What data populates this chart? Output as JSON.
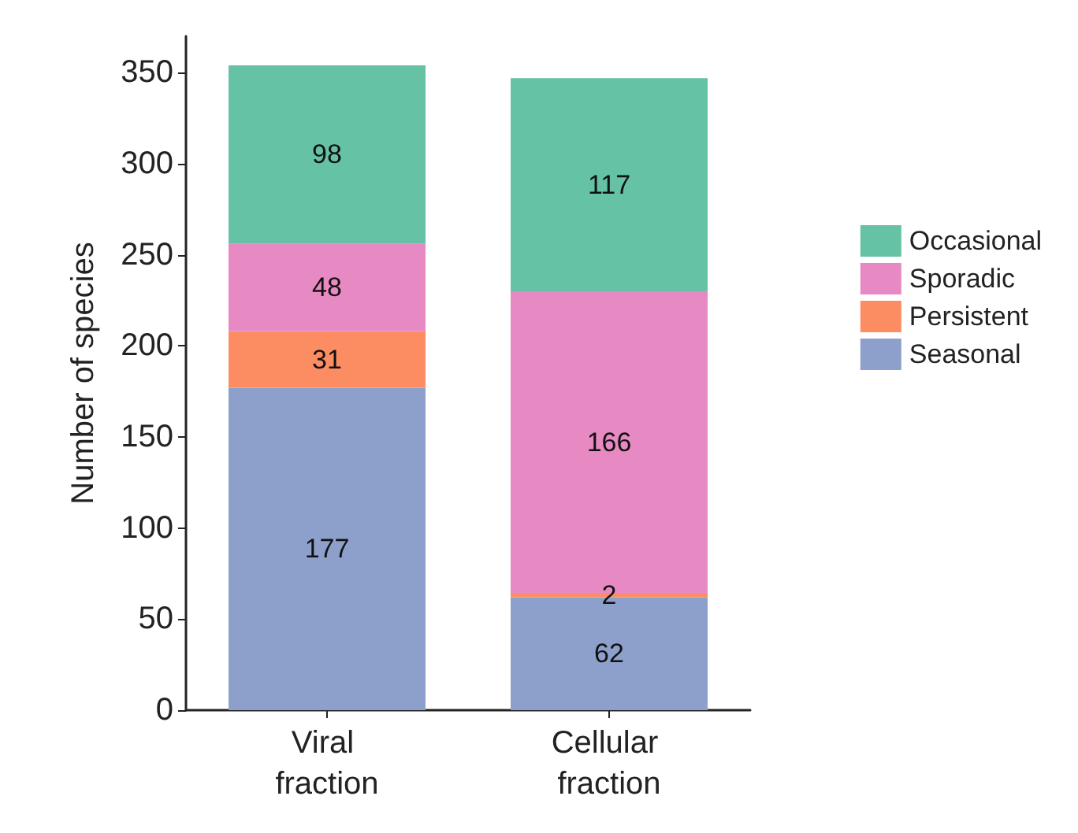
{
  "chart_data": {
    "type": "bar",
    "stacked": true,
    "ylabel": "Number of species",
    "categories": [
      "Viral fraction",
      "Cellular fraction"
    ],
    "ylim": [
      0,
      370
    ],
    "yticks": [
      0,
      50,
      100,
      150,
      200,
      250,
      300,
      350
    ],
    "grid": false,
    "legend": "right",
    "data_labels": true,
    "series": [
      {
        "name": "Seasonal",
        "color": "#8da0cb",
        "values": [
          177,
          62
        ]
      },
      {
        "name": "Persistent",
        "color": "#fc8d62",
        "values": [
          31,
          2
        ]
      },
      {
        "name": "Sporadic",
        "color": "#e78ac3",
        "values": [
          48,
          166
        ]
      },
      {
        "name": "Occasional",
        "color": "#66c2a5",
        "values": [
          98,
          117
        ]
      }
    ]
  }
}
